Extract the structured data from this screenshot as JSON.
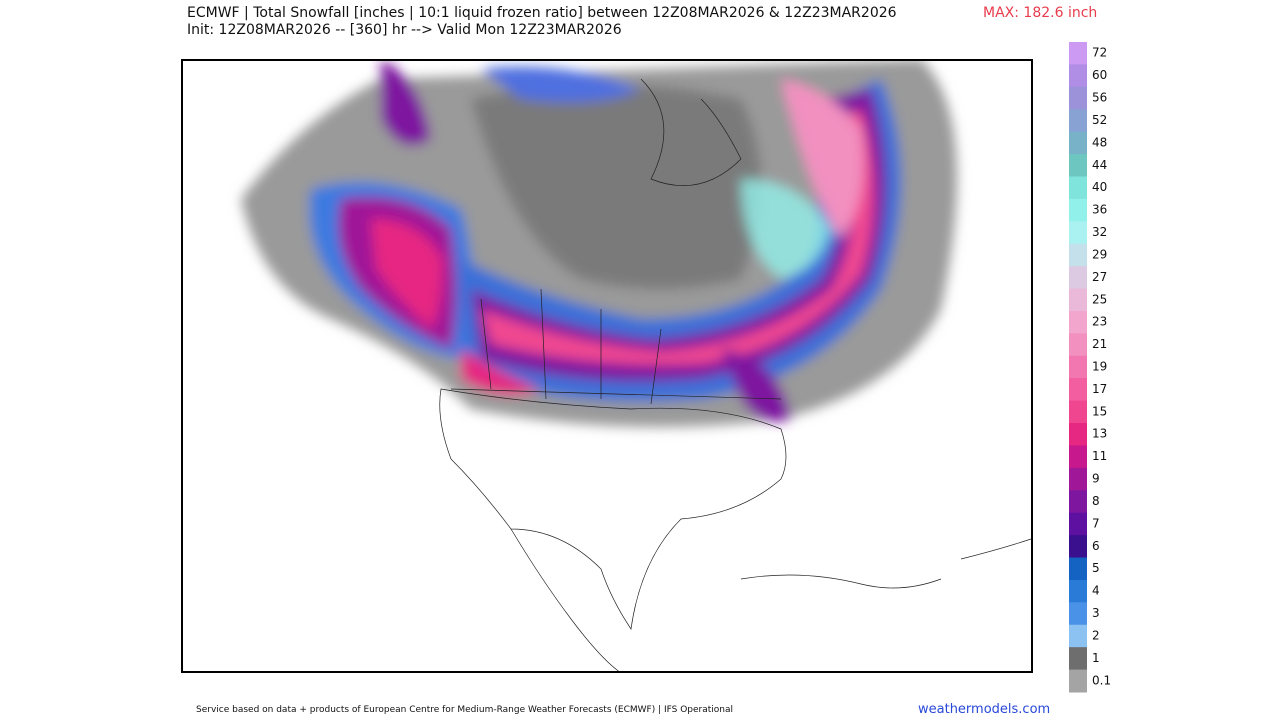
{
  "header": {
    "title": "ECMWF | Total Snowfall [inches | 10:1 liquid frozen ratio] between 12Z08MAR2026 & 12Z23MAR2026",
    "max": "MAX: 182.6 inch",
    "subtitle": "Init: 12Z08MAR2026 -- [360] hr --> Valid Mon 12Z23MAR2026"
  },
  "legend": [
    {
      "label": "72",
      "color": "#cc9af2"
    },
    {
      "label": "60",
      "color": "#b08ee6"
    },
    {
      "label": "56",
      "color": "#9c92da"
    },
    {
      "label": "52",
      "color": "#88a2d4"
    },
    {
      "label": "48",
      "color": "#78b2c8"
    },
    {
      "label": "44",
      "color": "#6ec6c0"
    },
    {
      "label": "40",
      "color": "#7ee4dc"
    },
    {
      "label": "36",
      "color": "#92f0ea"
    },
    {
      "label": "32",
      "color": "#aaf2f2"
    },
    {
      "label": "29",
      "color": "#c4e0ea"
    },
    {
      "label": "27",
      "color": "#dccae2"
    },
    {
      "label": "25",
      "color": "#eab8d8"
    },
    {
      "label": "23",
      "color": "#f2a6ce"
    },
    {
      "label": "21",
      "color": "#f290c0"
    },
    {
      "label": "19",
      "color": "#f276b0"
    },
    {
      "label": "17",
      "color": "#f25ea0"
    },
    {
      "label": "15",
      "color": "#f04690"
    },
    {
      "label": "13",
      "color": "#e62882"
    },
    {
      "label": "11",
      "color": "#c8188e"
    },
    {
      "label": "9",
      "color": "#a01898"
    },
    {
      "label": "8",
      "color": "#7e16a0"
    },
    {
      "label": "7",
      "color": "#5e10a0"
    },
    {
      "label": "6",
      "color": "#3a108e"
    },
    {
      "label": "5",
      "color": "#1462c2"
    },
    {
      "label": "4",
      "color": "#2a7ad8"
    },
    {
      "label": "3",
      "color": "#4a92e8"
    },
    {
      "label": "2",
      "color": "#8cc2f2"
    },
    {
      "label": "1",
      "color": "#6e6e6e"
    },
    {
      "label": "0.1",
      "color": "#a4a4a4"
    }
  ],
  "footer": "Service based on data + products of European Centre for Medium-Range Weather Forecasts (ECMWF) | IFS Operational",
  "site": "weathermodels.com"
}
